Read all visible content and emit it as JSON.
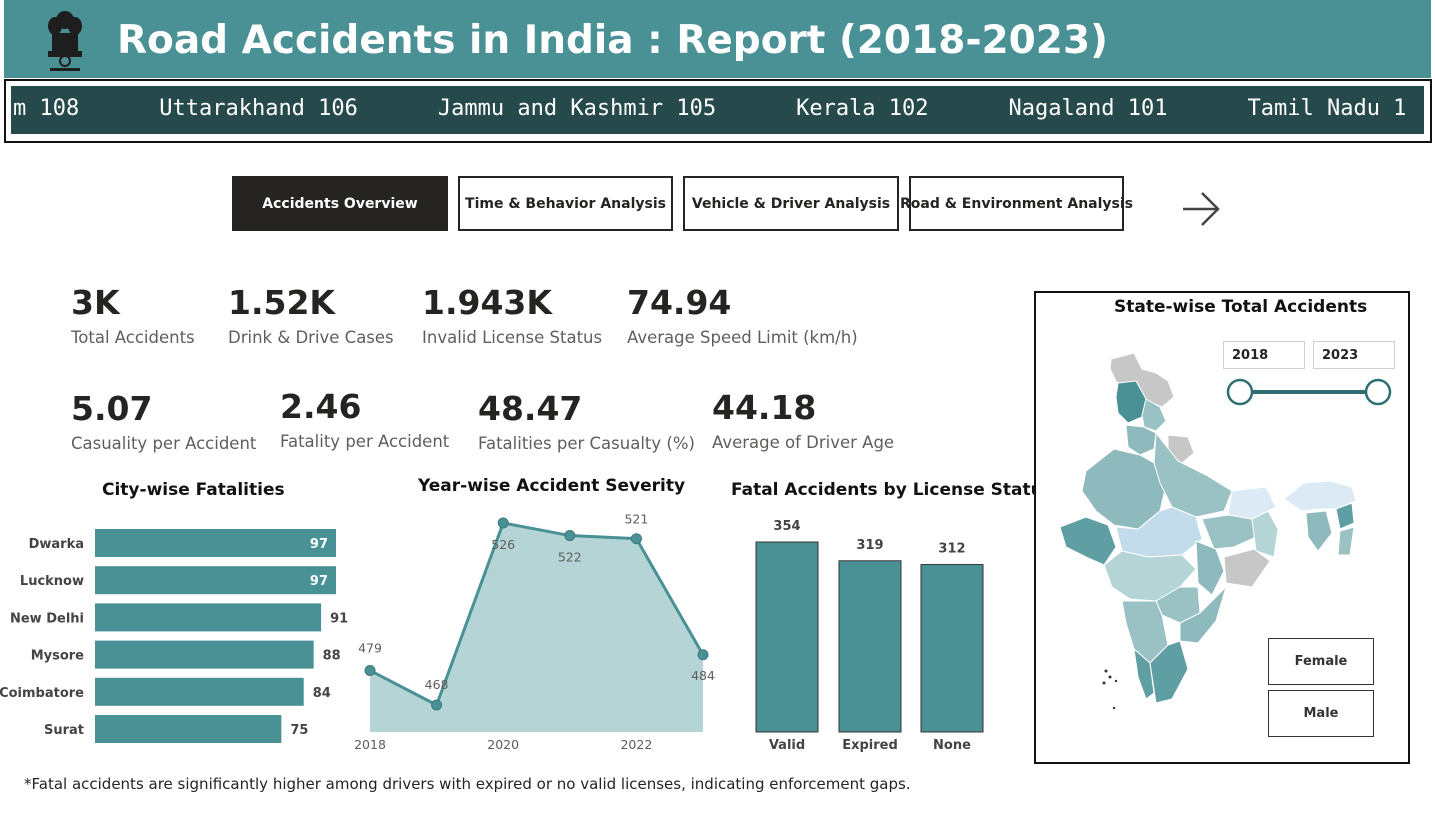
{
  "header": {
    "title": "Road Accidents in India : Report (2018-2023)",
    "emblem_icon": "national-emblem-icon"
  },
  "ticker": {
    "items": [
      "m 108",
      "Uttarakhand 106",
      "Jammu and Kashmir 105",
      "Kerala 102",
      "Nagaland 101",
      "Tamil Nadu 1"
    ]
  },
  "nav": {
    "tabs": [
      {
        "label": "Accidents Overview",
        "active": true
      },
      {
        "label": "Time & Behavior Analysis",
        "active": false
      },
      {
        "label": "Vehicle & Driver Analysis",
        "active": false
      },
      {
        "label": "Road & Environment Analysis",
        "active": false
      }
    ],
    "next_icon": "arrow-right-icon"
  },
  "kpis": [
    {
      "value": "3K",
      "label": "Total Accidents"
    },
    {
      "value": "1.52K",
      "label": "Drink & Drive Cases"
    },
    {
      "value": "1.943K",
      "label": "Invalid License Status"
    },
    {
      "value": "74.94",
      "label": "Average Speed Limit (km/h)"
    },
    {
      "value": "5.07",
      "label": "Casuality per Accident"
    },
    {
      "value": "2.46",
      "label": "Fatality per Accident"
    },
    {
      "value": "48.47",
      "label": "Fatalities per Casualty (%)"
    },
    {
      "value": "44.18",
      "label": "Average of Driver Age"
    }
  ],
  "colors": {
    "teal": "#4a9195",
    "teal_dark": "#264a4b",
    "teal_light": "#b4d4d5",
    "ink": "#252423"
  },
  "chart_data": [
    {
      "type": "bar",
      "orientation": "horizontal",
      "title": "City-wise Fatalities",
      "categories": [
        "Dwarka",
        "Lucknow",
        "New Delhi",
        "Mysore",
        "Coimbatore",
        "Surat"
      ],
      "values": [
        97,
        97,
        91,
        88,
        84,
        75
      ]
    },
    {
      "type": "area",
      "title": "Year-wise Accident Severity",
      "x": [
        2018,
        2019,
        2020,
        2021,
        2022,
        2023
      ],
      "values": [
        479,
        468,
        526,
        522,
        521,
        484
      ],
      "point_labels": [
        "479",
        "468",
        "526",
        "522",
        "521",
        "484"
      ],
      "x_tick_labels": [
        "2018",
        "2020",
        "2022"
      ]
    },
    {
      "type": "bar",
      "title": "Fatal Accidents by License Status",
      "categories": [
        "Valid",
        "Expired",
        "None"
      ],
      "values": [
        354,
        319,
        312
      ]
    }
  ],
  "map": {
    "title": "State-wise Total Accidents",
    "year_from": "2018",
    "year_to": "2023",
    "gender_buttons": [
      "Female",
      "Male"
    ]
  },
  "footnote": "*Fatal accidents are significantly higher among drivers with expired or no valid licenses, indicating enforcement gaps."
}
